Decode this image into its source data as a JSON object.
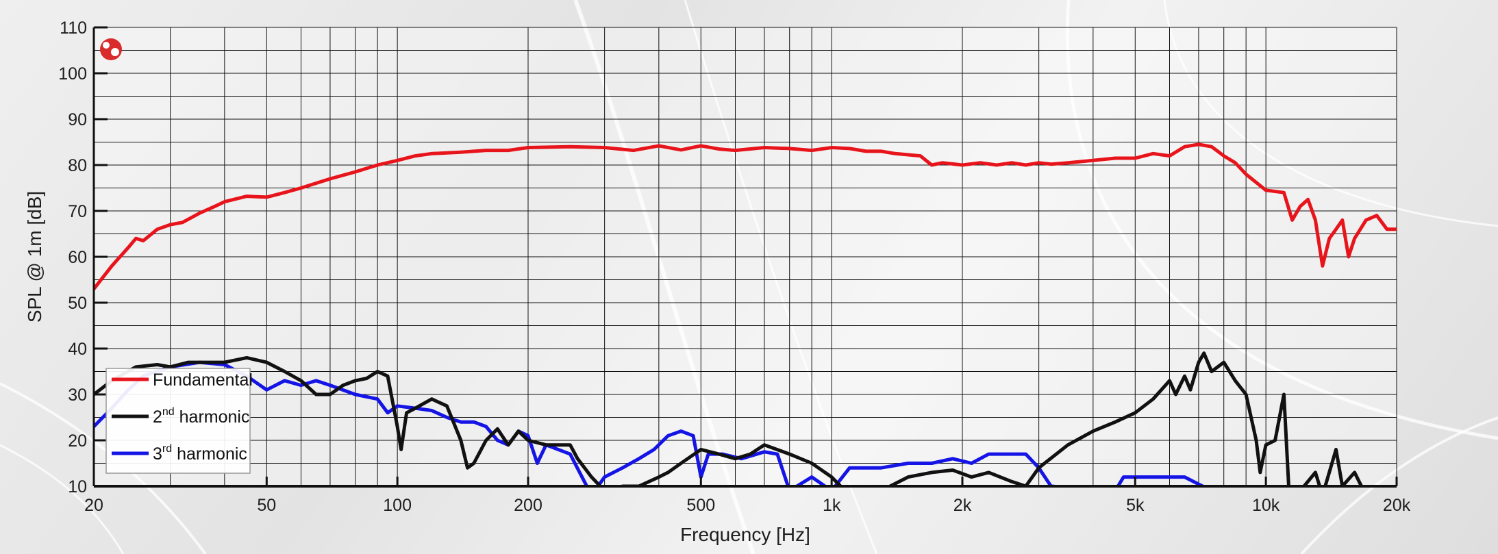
{
  "chart_data": {
    "type": "line",
    "xscale": "log",
    "xlim": [
      20,
      20000
    ],
    "ylim": [
      10,
      110
    ],
    "grid": true,
    "legend_position": "bottom-left",
    "xlabel": "Frequency [Hz]",
    "ylabel": "SPL @ 1m [dB]",
    "x_ticks": [
      {
        "value": 20,
        "label": "20"
      },
      {
        "value": 50,
        "label": "50"
      },
      {
        "value": 100,
        "label": "100"
      },
      {
        "value": 200,
        "label": "200"
      },
      {
        "value": 500,
        "label": "500"
      },
      {
        "value": 1000,
        "label": "1k"
      },
      {
        "value": 2000,
        "label": "2k"
      },
      {
        "value": 5000,
        "label": "5k"
      },
      {
        "value": 10000,
        "label": "10k"
      },
      {
        "value": 20000,
        "label": "20k"
      }
    ],
    "y_ticks": [
      10,
      20,
      30,
      40,
      50,
      60,
      70,
      80,
      90,
      100,
      110
    ],
    "series": [
      {
        "name": "Fundamental",
        "color": "#e8141b",
        "legend_main": "Fundamental",
        "legend_sup": "",
        "legend_rest": "",
        "points": [
          [
            20,
            53
          ],
          [
            22,
            58
          ],
          [
            24,
            62
          ],
          [
            25,
            64
          ],
          [
            26,
            63.5
          ],
          [
            28,
            66
          ],
          [
            30,
            67
          ],
          [
            32,
            67.5
          ],
          [
            35,
            69.5
          ],
          [
            38,
            71
          ],
          [
            40,
            72
          ],
          [
            45,
            73.2
          ],
          [
            50,
            73
          ],
          [
            55,
            74
          ],
          [
            60,
            75
          ],
          [
            70,
            77
          ],
          [
            80,
            78.5
          ],
          [
            90,
            80
          ],
          [
            100,
            81
          ],
          [
            110,
            82
          ],
          [
            120,
            82.5
          ],
          [
            140,
            82.8
          ],
          [
            160,
            83.2
          ],
          [
            180,
            83.2
          ],
          [
            200,
            83.8
          ],
          [
            250,
            84
          ],
          [
            300,
            83.8
          ],
          [
            350,
            83.2
          ],
          [
            400,
            84.2
          ],
          [
            450,
            83.3
          ],
          [
            500,
            84.2
          ],
          [
            550,
            83.5
          ],
          [
            600,
            83.2
          ],
          [
            700,
            83.8
          ],
          [
            800,
            83.6
          ],
          [
            900,
            83.2
          ],
          [
            1000,
            83.8
          ],
          [
            1100,
            83.6
          ],
          [
            1200,
            83
          ],
          [
            1300,
            83
          ],
          [
            1400,
            82.5
          ],
          [
            1600,
            82
          ],
          [
            1700,
            80
          ],
          [
            1800,
            80.5
          ],
          [
            2000,
            80
          ],
          [
            2200,
            80.5
          ],
          [
            2400,
            80
          ],
          [
            2600,
            80.5
          ],
          [
            2800,
            80
          ],
          [
            3000,
            80.5
          ],
          [
            3200,
            80.2
          ],
          [
            3500,
            80.5
          ],
          [
            4000,
            81
          ],
          [
            4500,
            81.5
          ],
          [
            5000,
            81.5
          ],
          [
            5500,
            82.5
          ],
          [
            6000,
            82
          ],
          [
            6500,
            84
          ],
          [
            7000,
            84.5
          ],
          [
            7500,
            84
          ],
          [
            8000,
            82
          ],
          [
            8500,
            80.5
          ],
          [
            9000,
            78
          ],
          [
            10000,
            74.5
          ],
          [
            11000,
            74
          ],
          [
            11500,
            68
          ],
          [
            12000,
            71
          ],
          [
            12500,
            72.5
          ],
          [
            13000,
            68
          ],
          [
            13500,
            58
          ],
          [
            14000,
            64
          ],
          [
            14500,
            66
          ],
          [
            15000,
            68
          ],
          [
            15500,
            60
          ],
          [
            16000,
            64
          ],
          [
            17000,
            68
          ],
          [
            18000,
            69
          ],
          [
            19000,
            66
          ],
          [
            20000,
            66
          ]
        ]
      },
      {
        "name": "2nd harmonic",
        "color": "#111111",
        "legend_main": "2",
        "legend_sup": "nd",
        "legend_rest": " harmonic",
        "points": [
          [
            20,
            30
          ],
          [
            22,
            33
          ],
          [
            25,
            36
          ],
          [
            28,
            36.5
          ],
          [
            30,
            36
          ],
          [
            33,
            37
          ],
          [
            35,
            37
          ],
          [
            40,
            37
          ],
          [
            45,
            38
          ],
          [
            50,
            37
          ],
          [
            55,
            35
          ],
          [
            60,
            33
          ],
          [
            65,
            30
          ],
          [
            70,
            30
          ],
          [
            75,
            32
          ],
          [
            80,
            33
          ],
          [
            85,
            33.5
          ],
          [
            90,
            35
          ],
          [
            95,
            34
          ],
          [
            100,
            23
          ],
          [
            102,
            18
          ],
          [
            105,
            26
          ],
          [
            110,
            27
          ],
          [
            120,
            29
          ],
          [
            130,
            27.5
          ],
          [
            140,
            20
          ],
          [
            145,
            14
          ],
          [
            150,
            15
          ],
          [
            160,
            20
          ],
          [
            170,
            22.5
          ],
          [
            180,
            19
          ],
          [
            190,
            22
          ],
          [
            200,
            20
          ],
          [
            220,
            19
          ],
          [
            250,
            19
          ],
          [
            260,
            16
          ],
          [
            280,
            12
          ],
          [
            300,
            9
          ],
          [
            330,
            10
          ],
          [
            360,
            10
          ],
          [
            400,
            12
          ],
          [
            420,
            13
          ],
          [
            450,
            15
          ],
          [
            500,
            18
          ],
          [
            550,
            17
          ],
          [
            600,
            16
          ],
          [
            650,
            17
          ],
          [
            700,
            19
          ],
          [
            800,
            17
          ],
          [
            900,
            15
          ],
          [
            1000,
            12
          ],
          [
            1100,
            8
          ],
          [
            1300,
            9
          ],
          [
            1500,
            12
          ],
          [
            1700,
            13
          ],
          [
            1900,
            13.5
          ],
          [
            2100,
            12
          ],
          [
            2300,
            13
          ],
          [
            2600,
            11
          ],
          [
            2800,
            10
          ],
          [
            3000,
            14
          ],
          [
            3500,
            19
          ],
          [
            4000,
            22
          ],
          [
            4500,
            24
          ],
          [
            5000,
            26
          ],
          [
            5500,
            29
          ],
          [
            6000,
            33
          ],
          [
            6200,
            30
          ],
          [
            6500,
            34
          ],
          [
            6700,
            31
          ],
          [
            7000,
            37
          ],
          [
            7200,
            39
          ],
          [
            7500,
            35
          ],
          [
            8000,
            37
          ],
          [
            8500,
            33
          ],
          [
            9000,
            30
          ],
          [
            9500,
            20
          ],
          [
            9700,
            13
          ],
          [
            10000,
            19
          ],
          [
            10500,
            20
          ],
          [
            11000,
            30
          ],
          [
            11300,
            9
          ],
          [
            12000,
            9
          ],
          [
            13000,
            13
          ],
          [
            13500,
            8
          ],
          [
            14500,
            18
          ],
          [
            15000,
            10
          ],
          [
            16000,
            13
          ],
          [
            17000,
            8
          ],
          [
            20000,
            8
          ]
        ]
      },
      {
        "name": "3rd harmonic",
        "color": "#1414e6",
        "legend_main": "3",
        "legend_sup": "rd",
        "legend_rest": " harmonic",
        "points": [
          [
            20,
            23
          ],
          [
            22,
            27
          ],
          [
            24,
            31
          ],
          [
            26,
            34
          ],
          [
            30,
            36
          ],
          [
            35,
            37
          ],
          [
            40,
            36.5
          ],
          [
            45,
            34
          ],
          [
            50,
            31
          ],
          [
            55,
            33
          ],
          [
            60,
            32
          ],
          [
            65,
            33
          ],
          [
            70,
            32
          ],
          [
            80,
            30
          ],
          [
            90,
            29
          ],
          [
            95,
            26
          ],
          [
            100,
            27.5
          ],
          [
            110,
            27
          ],
          [
            120,
            26.5
          ],
          [
            130,
            25
          ],
          [
            140,
            24
          ],
          [
            150,
            24
          ],
          [
            160,
            23
          ],
          [
            170,
            20
          ],
          [
            180,
            19
          ],
          [
            190,
            22
          ],
          [
            200,
            21
          ],
          [
            210,
            15
          ],
          [
            220,
            19
          ],
          [
            250,
            17
          ],
          [
            280,
            8
          ],
          [
            300,
            12
          ],
          [
            330,
            14
          ],
          [
            360,
            16
          ],
          [
            390,
            18
          ],
          [
            420,
            21
          ],
          [
            450,
            22
          ],
          [
            480,
            21
          ],
          [
            500,
            12
          ],
          [
            520,
            17
          ],
          [
            560,
            17
          ],
          [
            620,
            16
          ],
          [
            700,
            17.5
          ],
          [
            750,
            17
          ],
          [
            800,
            9
          ],
          [
            900,
            12
          ],
          [
            1000,
            9
          ],
          [
            1100,
            14
          ],
          [
            1300,
            14
          ],
          [
            1500,
            15
          ],
          [
            1700,
            15
          ],
          [
            1900,
            16
          ],
          [
            2100,
            15
          ],
          [
            2300,
            17
          ],
          [
            2600,
            17
          ],
          [
            2800,
            17
          ],
          [
            3000,
            14
          ],
          [
            3200,
            10
          ],
          [
            4500,
            9
          ],
          [
            4700,
            12
          ],
          [
            6500,
            12
          ],
          [
            7500,
            9
          ]
        ]
      }
    ]
  }
}
